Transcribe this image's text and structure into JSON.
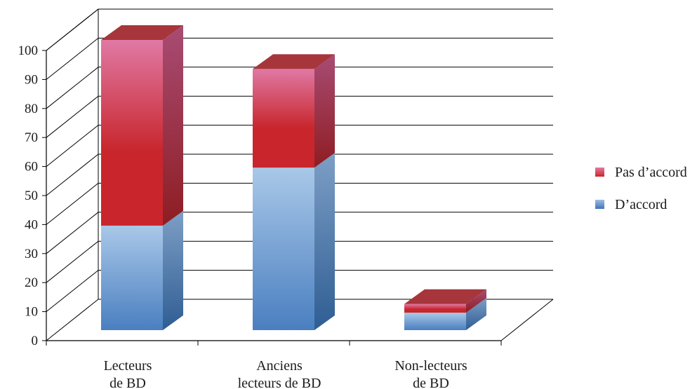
{
  "chart_data": {
    "type": "bar",
    "stacked": true,
    "style": "3d",
    "categories": [
      "Lecteurs\nde BD",
      "Anciens\nlecteurs de BD",
      "Non-lecteurs\nde BD"
    ],
    "series": [
      {
        "name": "D’accord",
        "values": [
          36,
          56,
          6
        ],
        "color": "#4a7fc0"
      },
      {
        "name": "Pas d’accord",
        "values": [
          64,
          34,
          3
        ],
        "color": "#c8262c"
      }
    ],
    "yticks": [
      0,
      10,
      20,
      30,
      40,
      50,
      60,
      70,
      80,
      90,
      100
    ],
    "ylim": [
      0,
      100
    ],
    "grid": true,
    "legend_position": "right"
  }
}
